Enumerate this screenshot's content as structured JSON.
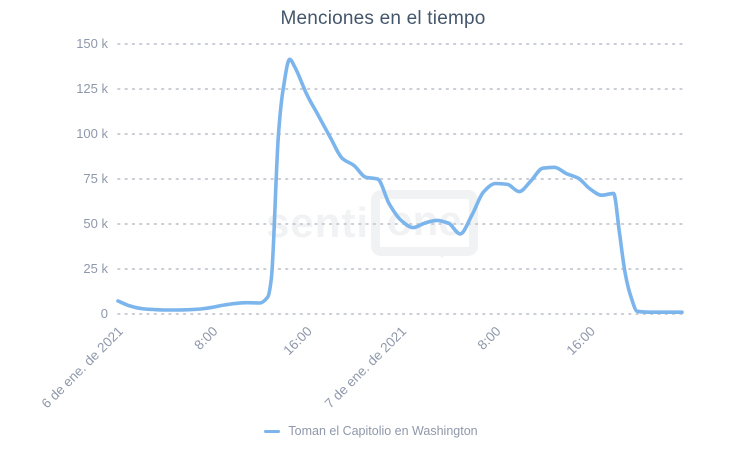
{
  "page": {
    "background": "#ffffff"
  },
  "chart_data": {
    "type": "line",
    "title": "Menciones en el tiempo",
    "legend_position": "bottom-center",
    "grid": "dotted-horizontal",
    "colors": {
      "title": "#44566b",
      "axis_labels": "#8f98ab",
      "grid_dots": "#c4c8cf",
      "series_line": "#7cb5ec",
      "watermark": "#f1f2f4"
    },
    "watermark": {
      "text_left": "senti",
      "text_bubble": "one"
    },
    "y_axis": {
      "unit": "k",
      "tick_values_k": [
        0,
        25,
        50,
        75,
        100,
        125,
        150
      ],
      "tick_labels": [
        "0",
        "25 k",
        "50 k",
        "75 k",
        "100 k",
        "125 k",
        "150 k"
      ],
      "max_k": 150
    },
    "x_axis": {
      "label_rotation_deg": -45,
      "range_hours": [
        0,
        47.8
      ],
      "tick_hours": [
        0,
        8,
        16,
        24,
        32,
        40
      ],
      "tick_labels": [
        "6 de ene. de 2021",
        "8:00",
        "16:00",
        "7 de ene. de 2021",
        "8:00",
        "16:00"
      ]
    },
    "series": [
      {
        "name": "Toman el Capitolio en Washington",
        "color": "#7cb5ec",
        "x_hours": [
          0,
          1,
          2,
          3,
          4,
          5,
          6,
          7,
          8,
          9,
          10,
          11,
          12,
          12.7,
          13,
          13.6,
          14,
          14.55,
          15,
          16,
          17,
          18,
          19,
          20,
          21,
          22,
          23,
          24,
          25,
          26,
          27,
          28,
          29,
          30,
          31,
          32,
          33,
          34,
          35,
          36,
          37,
          38,
          39,
          40,
          41,
          42,
          42.5,
          43,
          43.5,
          44,
          45,
          46,
          47,
          47.8
        ],
        "values_k": [
          7.2,
          4.5,
          3,
          2.5,
          2.2,
          2.2,
          2.4,
          2.8,
          3.7,
          5,
          5.9,
          6.3,
          6.1,
          9.5,
          20,
          100,
          125,
          141.5,
          137,
          122,
          110,
          98,
          86.5,
          82.5,
          76,
          75,
          61,
          52,
          48,
          50.5,
          52,
          50.5,
          44.5,
          55,
          68,
          72.5,
          72,
          68,
          74,
          81,
          81.5,
          78,
          75.5,
          69.5,
          66,
          67,
          45,
          22,
          9,
          1.5,
          1,
          1,
          1,
          1
        ],
        "peak": {
          "value_k": 141.5,
          "hour": 14.55
        }
      }
    ]
  }
}
